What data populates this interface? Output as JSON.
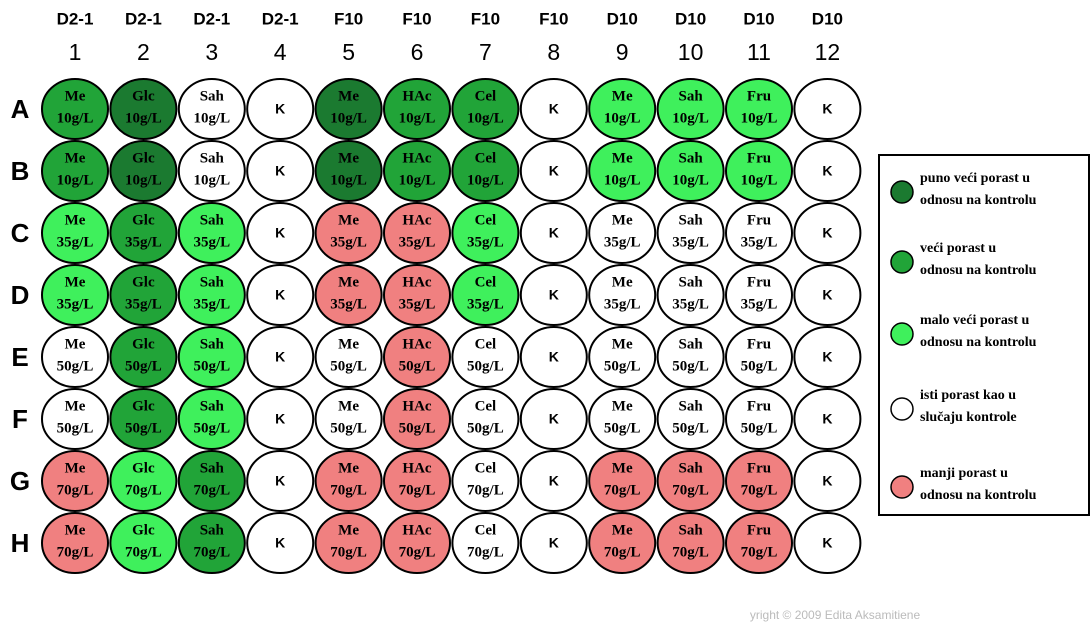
{
  "columns": {
    "strains": [
      "D2-1",
      "D2-1",
      "D2-1",
      "D2-1",
      "F10",
      "F10",
      "F10",
      "F10",
      "D10",
      "D10",
      "D10",
      "D10"
    ],
    "numbers": [
      "1",
      "2",
      "3",
      "4",
      "5",
      "6",
      "7",
      "8",
      "9",
      "10",
      "11",
      "12"
    ]
  },
  "rows": [
    {
      "letter": "A",
      "wells": [
        {
          "name": "Me",
          "conc": "10g/L",
          "color": "#21a438"
        },
        {
          "name": "Glc",
          "conc": "10g/L",
          "color": "#1b7a30"
        },
        {
          "name": "Sah",
          "conc": "10g/L",
          "color": "#ffffff"
        },
        {
          "name": "K",
          "color": "#ffffff"
        },
        {
          "name": "Me",
          "conc": "10g/L",
          "color": "#1b7a30"
        },
        {
          "name": "HAc",
          "conc": "10g/L",
          "color": "#21a438"
        },
        {
          "name": "Cel",
          "conc": "10g/L",
          "color": "#21a438"
        },
        {
          "name": "K",
          "color": "#ffffff"
        },
        {
          "name": "Me",
          "conc": "10g/L",
          "color": "#3ff05c"
        },
        {
          "name": "Sah",
          "conc": "10g/L",
          "color": "#3ff05c"
        },
        {
          "name": "Fru",
          "conc": "10g/L",
          "color": "#3ff05c"
        },
        {
          "name": "K",
          "color": "#ffffff"
        }
      ]
    },
    {
      "letter": "B",
      "wells": [
        {
          "name": "Me",
          "conc": "10g/L",
          "color": "#21a438"
        },
        {
          "name": "Glc",
          "conc": "10g/L",
          "color": "#1b7a30"
        },
        {
          "name": "Sah",
          "conc": "10g/L",
          "color": "#ffffff"
        },
        {
          "name": "K",
          "color": "#ffffff"
        },
        {
          "name": "Me",
          "conc": "10g/L",
          "color": "#1b7a30"
        },
        {
          "name": "HAc",
          "conc": "10g/L",
          "color": "#21a438"
        },
        {
          "name": "Cel",
          "conc": "10g/L",
          "color": "#21a438"
        },
        {
          "name": "K",
          "color": "#ffffff"
        },
        {
          "name": "Me",
          "conc": "10g/L",
          "color": "#3ff05c"
        },
        {
          "name": "Sah",
          "conc": "10g/L",
          "color": "#3ff05c"
        },
        {
          "name": "Fru",
          "conc": "10g/L",
          "color": "#3ff05c"
        },
        {
          "name": "K",
          "color": "#ffffff"
        }
      ]
    },
    {
      "letter": "C",
      "wells": [
        {
          "name": "Me",
          "conc": "35g/L",
          "color": "#3ff05c"
        },
        {
          "name": "Glc",
          "conc": "35g/L",
          "color": "#21a438"
        },
        {
          "name": "Sah",
          "conc": "35g/L",
          "color": "#3ff05c"
        },
        {
          "name": "K",
          "color": "#ffffff"
        },
        {
          "name": "Me",
          "conc": "35g/L",
          "color": "#f08080"
        },
        {
          "name": "HAc",
          "conc": "35g/L",
          "color": "#f08080"
        },
        {
          "name": "Cel",
          "conc": "35g/L",
          "color": "#3ff05c"
        },
        {
          "name": "K",
          "color": "#ffffff"
        },
        {
          "name": "Me",
          "conc": "35g/L",
          "color": "#ffffff"
        },
        {
          "name": "Sah",
          "conc": "35g/L",
          "color": "#ffffff"
        },
        {
          "name": "Fru",
          "conc": "35g/L",
          "color": "#ffffff"
        },
        {
          "name": "K",
          "color": "#ffffff"
        }
      ]
    },
    {
      "letter": "D",
      "wells": [
        {
          "name": "Me",
          "conc": "35g/L",
          "color": "#3ff05c"
        },
        {
          "name": "Glc",
          "conc": "35g/L",
          "color": "#21a438"
        },
        {
          "name": "Sah",
          "conc": "35g/L",
          "color": "#3ff05c"
        },
        {
          "name": "K",
          "color": "#ffffff"
        },
        {
          "name": "Me",
          "conc": "35g/L",
          "color": "#f08080"
        },
        {
          "name": "HAc",
          "conc": "35g/L",
          "color": "#f08080"
        },
        {
          "name": "Cel",
          "conc": "35g/L",
          "color": "#3ff05c"
        },
        {
          "name": "K",
          "color": "#ffffff"
        },
        {
          "name": "Me",
          "conc": "35g/L",
          "color": "#ffffff"
        },
        {
          "name": "Sah",
          "conc": "35g/L",
          "color": "#ffffff"
        },
        {
          "name": "Fru",
          "conc": "35g/L",
          "color": "#ffffff"
        },
        {
          "name": "K",
          "color": "#ffffff"
        }
      ]
    },
    {
      "letter": "E",
      "wells": [
        {
          "name": "Me",
          "conc": "50g/L",
          "color": "#ffffff"
        },
        {
          "name": "Glc",
          "conc": "50g/L",
          "color": "#21a438"
        },
        {
          "name": "Sah",
          "conc": "50g/L",
          "color": "#3ff05c"
        },
        {
          "name": "K",
          "color": "#ffffff"
        },
        {
          "name": "Me",
          "conc": "50g/L",
          "color": "#ffffff"
        },
        {
          "name": "HAc",
          "conc": "50g/L",
          "color": "#f08080"
        },
        {
          "name": "Cel",
          "conc": "50g/L",
          "color": "#ffffff"
        },
        {
          "name": "K",
          "color": "#ffffff"
        },
        {
          "name": "Me",
          "conc": "50g/L",
          "color": "#ffffff"
        },
        {
          "name": "Sah",
          "conc": "50g/L",
          "color": "#ffffff"
        },
        {
          "name": "Fru",
          "conc": "50g/L",
          "color": "#ffffff"
        },
        {
          "name": "K",
          "color": "#ffffff"
        }
      ]
    },
    {
      "letter": "F",
      "wells": [
        {
          "name": "Me",
          "conc": "50g/L",
          "color": "#ffffff"
        },
        {
          "name": "Glc",
          "conc": "50g/L",
          "color": "#21a438"
        },
        {
          "name": "Sah",
          "conc": "50g/L",
          "color": "#3ff05c"
        },
        {
          "name": "K",
          "color": "#ffffff"
        },
        {
          "name": "Me",
          "conc": "50g/L",
          "color": "#ffffff"
        },
        {
          "name": "HAc",
          "conc": "50g/L",
          "color": "#f08080"
        },
        {
          "name": "Cel",
          "conc": "50g/L",
          "color": "#ffffff"
        },
        {
          "name": "K",
          "color": "#ffffff"
        },
        {
          "name": "Me",
          "conc": "50g/L",
          "color": "#ffffff"
        },
        {
          "name": "Sah",
          "conc": "50g/L",
          "color": "#ffffff"
        },
        {
          "name": "Fru",
          "conc": "50g/L",
          "color": "#ffffff"
        },
        {
          "name": "K",
          "color": "#ffffff"
        }
      ]
    },
    {
      "letter": "G",
      "wells": [
        {
          "name": "Me",
          "conc": "70g/L",
          "color": "#f08080"
        },
        {
          "name": "Glc",
          "conc": "70g/L",
          "color": "#3ff05c"
        },
        {
          "name": "Sah",
          "conc": "70g/L",
          "color": "#21a438"
        },
        {
          "name": "K",
          "color": "#ffffff"
        },
        {
          "name": "Me",
          "conc": "70g/L",
          "color": "#f08080"
        },
        {
          "name": "HAc",
          "conc": "70g/L",
          "color": "#f08080"
        },
        {
          "name": "Cel",
          "conc": "70g/L",
          "color": "#ffffff"
        },
        {
          "name": "K",
          "color": "#ffffff"
        },
        {
          "name": "Me",
          "conc": "70g/L",
          "color": "#f08080"
        },
        {
          "name": "Sah",
          "conc": "70g/L",
          "color": "#f08080"
        },
        {
          "name": "Fru",
          "conc": "70g/L",
          "color": "#f08080"
        },
        {
          "name": "K",
          "color": "#ffffff"
        }
      ]
    },
    {
      "letter": "H",
      "wells": [
        {
          "name": "Me",
          "conc": "70g/L",
          "color": "#f08080"
        },
        {
          "name": "Glc",
          "conc": "70g/L",
          "color": "#3ff05c"
        },
        {
          "name": "Sah",
          "conc": "70g/L",
          "color": "#21a438"
        },
        {
          "name": "K",
          "color": "#ffffff"
        },
        {
          "name": "Me",
          "conc": "70g/L",
          "color": "#f08080"
        },
        {
          "name": "HAc",
          "conc": "70g/L",
          "color": "#f08080"
        },
        {
          "name": "Cel",
          "conc": "70g/L",
          "color": "#ffffff"
        },
        {
          "name": "K",
          "color": "#ffffff"
        },
        {
          "name": "Me",
          "conc": "70g/L",
          "color": "#f08080"
        },
        {
          "name": "Sah",
          "conc": "70g/L",
          "color": "#f08080"
        },
        {
          "name": "Fru",
          "conc": "70g/L",
          "color": "#f08080"
        },
        {
          "name": "K",
          "color": "#ffffff"
        }
      ]
    }
  ],
  "legend": [
    {
      "color": "#1b7a30",
      "lines": [
        "puno veći porast u",
        "odnosu na kontrolu"
      ]
    },
    {
      "color": "#21a438",
      "lines": [
        "veći porast u",
        "odnosu na kontrolu"
      ]
    },
    {
      "color": "#3ff05c",
      "lines": [
        "malo veći porast u",
        "odnosu na kontrolu"
      ]
    },
    {
      "color": "#ffffff",
      "lines": [
        "isti porast kao u",
        "slučaju kontrole"
      ]
    },
    {
      "color": "#f08080",
      "lines": [
        "manji porast u",
        "odnosu na kontrolu"
      ]
    }
  ],
  "copyright": "yright © 2009 Edita Aksamitiene"
}
